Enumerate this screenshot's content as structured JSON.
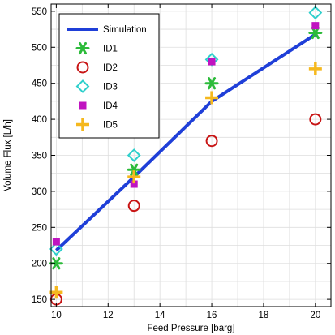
{
  "chart_data": {
    "type": "line",
    "xlabel": "Feed Pressure [barg]",
    "ylabel": "Volume Flux [L/h]",
    "xlim": [
      9.8,
      20.6
    ],
    "ylim": [
      140,
      560
    ],
    "xticks": [
      10,
      12,
      14,
      16,
      18,
      20
    ],
    "yticks": [
      150,
      200,
      250,
      300,
      350,
      400,
      450,
      500,
      550
    ],
    "grid": true,
    "legend_position": "top-left",
    "series": [
      {
        "name": "Simulation",
        "kind": "line",
        "color": "#1f3fd8",
        "x": [
          10,
          13,
          16,
          20
        ],
        "y": [
          218,
          320,
          425,
          518
        ]
      },
      {
        "name": "ID1",
        "kind": "marker",
        "marker": "asterisk",
        "color": "#2cbb3a",
        "x": [
          10,
          13,
          16,
          20
        ],
        "y": [
          200,
          330,
          450,
          520
        ]
      },
      {
        "name": "ID2",
        "kind": "marker",
        "marker": "circle",
        "color": "#c81414",
        "x": [
          10,
          13,
          16,
          20
        ],
        "y": [
          150,
          280,
          370,
          400
        ]
      },
      {
        "name": "ID3",
        "kind": "marker",
        "marker": "diamond",
        "color": "#2fd0cc",
        "x": [
          10,
          13,
          16,
          20
        ],
        "y": [
          220,
          350,
          483,
          548
        ]
      },
      {
        "name": "ID4",
        "kind": "marker",
        "marker": "square",
        "color": "#c014c0",
        "x": [
          10,
          13,
          16,
          20
        ],
        "y": [
          230,
          310,
          480,
          530
        ]
      },
      {
        "name": "ID5",
        "kind": "marker",
        "marker": "plus",
        "color": "#f5b81e",
        "x": [
          10,
          13,
          16,
          20
        ],
        "y": [
          160,
          320,
          430,
          470
        ]
      }
    ]
  }
}
